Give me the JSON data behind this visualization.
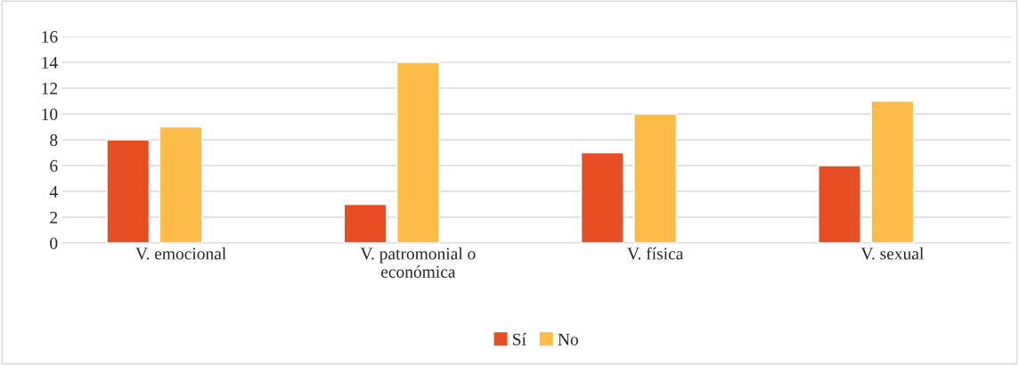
{
  "chart_data": {
    "type": "bar",
    "categories": [
      "V. emocional",
      "V. patromonial o\neconómica",
      "V. física",
      "V. sexual"
    ],
    "series": [
      {
        "name": "Sí",
        "color": "#e84e24",
        "values": [
          8,
          3,
          7,
          6
        ]
      },
      {
        "name": "No",
        "color": "#ffbb47",
        "values": [
          9,
          14,
          10,
          11
        ]
      }
    ],
    "ylim": [
      0,
      16
    ],
    "yticks": [
      0,
      2,
      4,
      6,
      8,
      10,
      12,
      14,
      16
    ],
    "grid": "y",
    "legend": "bottom"
  }
}
